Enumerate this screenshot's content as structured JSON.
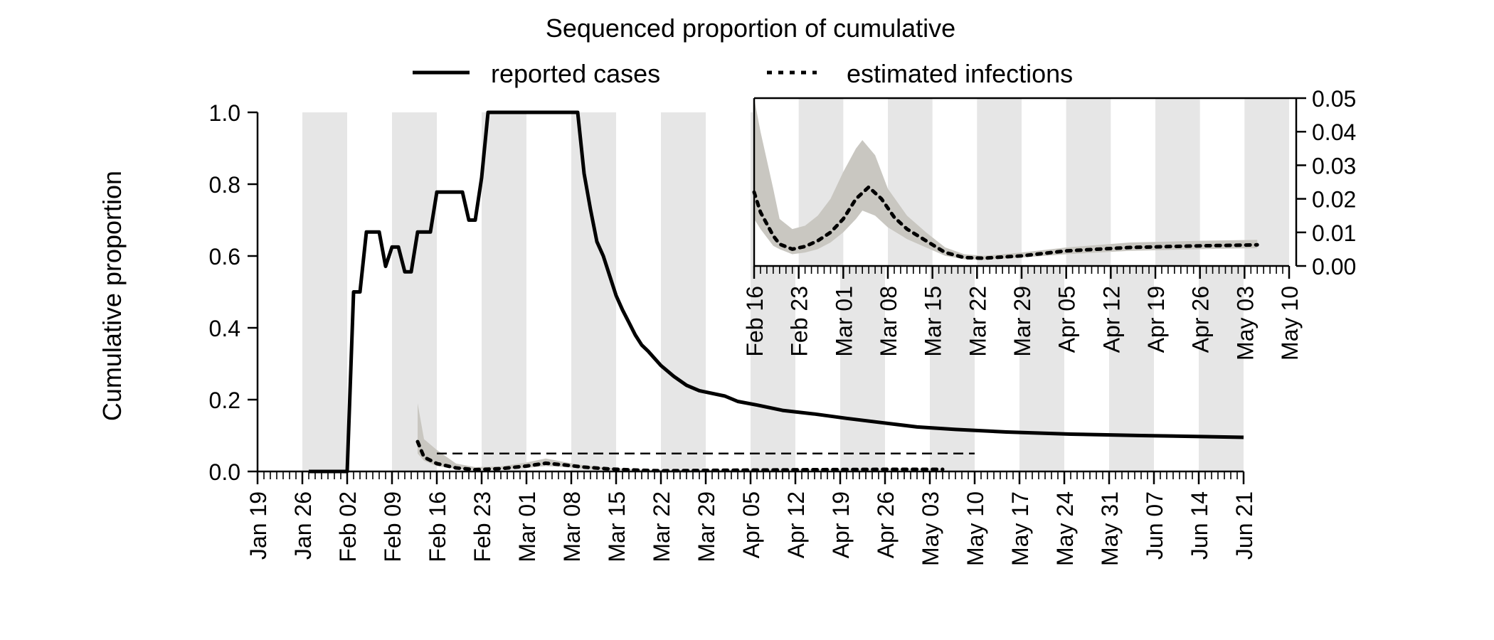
{
  "chart_data": [
    {
      "type": "line",
      "title": "Sequenced proportion of cumulative",
      "ylabel": "Cumulative proportion",
      "xlabel": "",
      "ylim": [
        0,
        1
      ],
      "yticks": [
        "0.0",
        "0.2",
        "0.4",
        "0.6",
        "0.8",
        "1.0"
      ],
      "xlim": [
        "2020-01-19",
        "2020-06-21"
      ],
      "xticks": [
        "Jan 19",
        "Jan 26",
        "Feb 02",
        "Feb 09",
        "Feb 16",
        "Feb 23",
        "Mar 01",
        "Mar 08",
        "Mar 15",
        "Mar 22",
        "Mar 29",
        "Apr 05",
        "Apr 12",
        "Apr 19",
        "Apr 26",
        "May 03",
        "May 10",
        "May 17",
        "May 24",
        "May 31",
        "Jun 07",
        "Jun 14",
        "Jun 21"
      ],
      "legend": {
        "placement": "top",
        "items": [
          {
            "label": "reported cases",
            "style": "solid"
          },
          {
            "label": "estimated infections",
            "style": "dotted"
          }
        ]
      },
      "grid": "alternate weekly shading",
      "series": [
        {
          "name": "reported cases",
          "points": [
            [
              "2020-01-27",
              0
            ],
            [
              "2020-01-31",
              0
            ],
            [
              "2020-02-02",
              0
            ],
            [
              "2020-02-03",
              0.5
            ],
            [
              "2020-02-04",
              0.5
            ],
            [
              "2020-02-05",
              0.667
            ],
            [
              "2020-02-07",
              0.667
            ],
            [
              "2020-02-08",
              0.571
            ],
            [
              "2020-02-09",
              0.625
            ],
            [
              "2020-02-10",
              0.625
            ],
            [
              "2020-02-11",
              0.556
            ],
            [
              "2020-02-12",
              0.556
            ],
            [
              "2020-02-13",
              0.667
            ],
            [
              "2020-02-15",
              0.667
            ],
            [
              "2020-02-16",
              0.778
            ],
            [
              "2020-02-20",
              0.778
            ],
            [
              "2020-02-21",
              0.7
            ],
            [
              "2020-02-22",
              0.7
            ],
            [
              "2020-02-23",
              0.818
            ],
            [
              "2020-02-24",
              1.0
            ],
            [
              "2020-03-09",
              1.0
            ],
            [
              "2020-03-10",
              0.83
            ],
            [
              "2020-03-11",
              0.73
            ],
            [
              "2020-03-12",
              0.64
            ],
            [
              "2020-03-13",
              0.6
            ],
            [
              "2020-03-14",
              0.545
            ],
            [
              "2020-03-15",
              0.49
            ],
            [
              "2020-03-16",
              0.45
            ],
            [
              "2020-03-17",
              0.415
            ],
            [
              "2020-03-18",
              0.38
            ],
            [
              "2020-03-19",
              0.352
            ],
            [
              "2020-03-20",
              0.335
            ],
            [
              "2020-03-21",
              0.315
            ],
            [
              "2020-03-22",
              0.295
            ],
            [
              "2020-03-24",
              0.265
            ],
            [
              "2020-03-26",
              0.24
            ],
            [
              "2020-03-28",
              0.225
            ],
            [
              "2020-04-01",
              0.21
            ],
            [
              "2020-04-03",
              0.195
            ],
            [
              "2020-04-06",
              0.185
            ],
            [
              "2020-04-10",
              0.17
            ],
            [
              "2020-04-15",
              0.16
            ],
            [
              "2020-04-20",
              0.148
            ],
            [
              "2020-04-25",
              0.137
            ],
            [
              "2020-05-01",
              0.124
            ],
            [
              "2020-05-07",
              0.117
            ],
            [
              "2020-05-15",
              0.11
            ],
            [
              "2020-05-25",
              0.104
            ],
            [
              "2020-06-05",
              0.1
            ],
            [
              "2020-06-15",
              0.097
            ],
            [
              "2020-06-21",
              0.095
            ]
          ]
        },
        {
          "name": "estimated infections",
          "points": [
            [
              "2020-02-13",
              0.083
            ],
            [
              "2020-02-14",
              0.04
            ],
            [
              "2020-02-16",
              0.022
            ],
            [
              "2020-02-19",
              0.01
            ],
            [
              "2020-02-22",
              0.005
            ],
            [
              "2020-02-26",
              0.008
            ],
            [
              "2020-03-01",
              0.015
            ],
            [
              "2020-03-04",
              0.023
            ],
            [
              "2020-03-07",
              0.018
            ],
            [
              "2020-03-10",
              0.012
            ],
            [
              "2020-03-14",
              0.007
            ],
            [
              "2020-03-18",
              0.004
            ],
            [
              "2020-03-22",
              0.002
            ],
            [
              "2020-03-29",
              0.003
            ],
            [
              "2020-04-05",
              0.004
            ],
            [
              "2020-04-15",
              0.005
            ],
            [
              "2020-04-26",
              0.006
            ],
            [
              "2020-05-05",
              0.006
            ]
          ],
          "band": [
            [
              "2020-02-13",
              0.05,
              0.19
            ],
            [
              "2020-02-14",
              0.03,
              0.09
            ],
            [
              "2020-02-16",
              0.015,
              0.06
            ],
            [
              "2020-02-19",
              0.007,
              0.022
            ],
            [
              "2020-02-22",
              0.004,
              0.012
            ],
            [
              "2020-02-26",
              0.006,
              0.014
            ],
            [
              "2020-03-01",
              0.01,
              0.025
            ],
            [
              "2020-03-04",
              0.015,
              0.036
            ],
            [
              "2020-03-07",
              0.012,
              0.026
            ],
            [
              "2020-03-10",
              0.008,
              0.017
            ],
            [
              "2020-03-14",
              0.005,
              0.01
            ],
            [
              "2020-03-18",
              0.003,
              0.006
            ],
            [
              "2020-03-22",
              0.0015,
              0.003
            ],
            [
              "2020-03-29",
              0.0025,
              0.004
            ],
            [
              "2020-04-05",
              0.003,
              0.005
            ],
            [
              "2020-04-15",
              0.004,
              0.006
            ],
            [
              "2020-04-26",
              0.0045,
              0.0065
            ],
            [
              "2020-05-05",
              0.0045,
              0.0068
            ]
          ]
        }
      ],
      "annotations": [
        {
          "type": "dashed-line",
          "from": "2020-02-16",
          "to": "2020-05-10",
          "y": 0.05
        }
      ]
    },
    {
      "type": "line",
      "role": "inset",
      "ylim": [
        0,
        0.05
      ],
      "yticks": [
        "0.00",
        "0.01",
        "0.02",
        "0.03",
        "0.04",
        "0.05"
      ],
      "xlim": [
        "2020-02-16",
        "2020-05-10"
      ],
      "xticks": [
        "Feb 16",
        "Feb 23",
        "Mar 01",
        "Mar 08",
        "Mar 15",
        "Mar 22",
        "Mar 29",
        "Apr 05",
        "Apr 12",
        "Apr 19",
        "Apr 26",
        "May 03",
        "May 10"
      ],
      "series": [
        {
          "name": "estimated infections",
          "points": [
            [
              "2020-02-16",
              0.022
            ],
            [
              "2020-02-17",
              0.016
            ],
            [
              "2020-02-19",
              0.009
            ],
            [
              "2020-02-20",
              0.0065
            ],
            [
              "2020-02-22",
              0.005
            ],
            [
              "2020-02-24",
              0.0058
            ],
            [
              "2020-02-26",
              0.0075
            ],
            [
              "2020-02-28",
              0.01
            ],
            [
              "2020-03-01",
              0.014
            ],
            [
              "2020-03-03",
              0.02
            ],
            [
              "2020-03-05",
              0.0235
            ],
            [
              "2020-03-07",
              0.02
            ],
            [
              "2020-03-09",
              0.0145
            ],
            [
              "2020-03-11",
              0.011
            ],
            [
              "2020-03-14",
              0.0075
            ],
            [
              "2020-03-17",
              0.004
            ],
            [
              "2020-03-20",
              0.0025
            ],
            [
              "2020-03-23",
              0.0023
            ],
            [
              "2020-03-29",
              0.003
            ],
            [
              "2020-04-05",
              0.0045
            ],
            [
              "2020-04-15",
              0.0055
            ],
            [
              "2020-04-26",
              0.006
            ],
            [
              "2020-05-05",
              0.0063
            ]
          ],
          "band": [
            [
              "2020-02-16",
              0.014,
              0.05
            ],
            [
              "2020-02-17",
              0.011,
              0.04
            ],
            [
              "2020-02-19",
              0.006,
              0.023
            ],
            [
              "2020-02-20",
              0.005,
              0.014
            ],
            [
              "2020-02-22",
              0.0035,
              0.011
            ],
            [
              "2020-02-24",
              0.004,
              0.012
            ],
            [
              "2020-02-26",
              0.005,
              0.015
            ],
            [
              "2020-02-28",
              0.007,
              0.02
            ],
            [
              "2020-03-01",
              0.01,
              0.028
            ],
            [
              "2020-03-03",
              0.014,
              0.035
            ],
            [
              "2020-03-04",
              0.0165,
              0.0375
            ],
            [
              "2020-03-06",
              0.015,
              0.033
            ],
            [
              "2020-03-08",
              0.0115,
              0.023
            ],
            [
              "2020-03-11",
              0.008,
              0.015
            ],
            [
              "2020-03-14",
              0.0055,
              0.01
            ],
            [
              "2020-03-17",
              0.003,
              0.0055
            ],
            [
              "2020-03-20",
              0.002,
              0.0035
            ],
            [
              "2020-03-23",
              0.0018,
              0.003
            ],
            [
              "2020-03-29",
              0.0025,
              0.004
            ],
            [
              "2020-04-05",
              0.0035,
              0.0055
            ],
            [
              "2020-04-15",
              0.0045,
              0.007
            ],
            [
              "2020-04-26",
              0.005,
              0.0075
            ],
            [
              "2020-05-05",
              0.0053,
              0.0078
            ]
          ]
        }
      ]
    }
  ],
  "colors": {
    "band": "#c9c7c1",
    "shade": "#e6e6e6",
    "line": "#000000"
  }
}
